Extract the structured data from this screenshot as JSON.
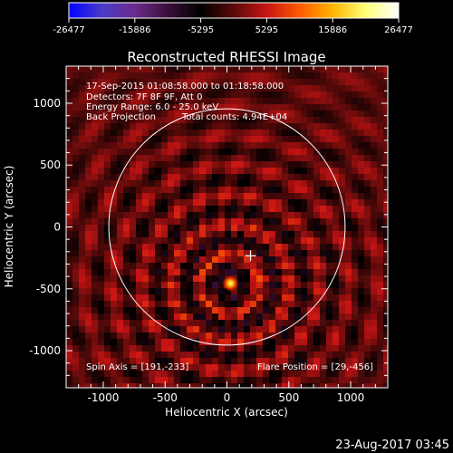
{
  "chart_data": {
    "type": "heatmap",
    "title": "Reconstructed RHESSI Image",
    "xlabel": "Heliocentric X (arcsec)",
    "ylabel": "Heliocentric Y (arcsec)",
    "xlim": [
      -1300,
      1300
    ],
    "ylim": [
      -1300,
      1300
    ],
    "x_ticks": [
      -1000,
      -500,
      0,
      500,
      1000
    ],
    "x_tick_labels": [
      "-1000",
      "-500",
      "0",
      "500",
      "1000"
    ],
    "y_ticks": [
      -1000,
      -500,
      0,
      500,
      1000
    ],
    "y_tick_labels": [
      "-1000",
      "-500",
      "0",
      "500",
      "1000"
    ],
    "colorbar": {
      "min": -26477,
      "max": 26477,
      "tick_values": [
        -26477,
        -15886,
        -5295,
        5295,
        15886,
        26477
      ],
      "tick_labels": [
        "-26477",
        "-15886",
        "-5295",
        "5295",
        "15886",
        "26477"
      ],
      "colors": [
        "#0000ff",
        "#4b3cc8",
        "#6a2c8c",
        "#3a0f3a",
        "#000000",
        "#5a0a0a",
        "#c81414",
        "#ff5a00",
        "#ffb400",
        "#ffff78",
        "#ffffff"
      ]
    },
    "info_lines": [
      "17-Sep-2015 01:08:58.000 to 01:18:58.000",
      "Detectors: 7F 8F 9F, Att 0",
      "Energy Range: 6.0 - 25.0 keV",
      "Back Projection",
      "Total counts: 4.94E+04"
    ],
    "solar_disk_radius_arcsec": 955,
    "spin_axis": [
      191,
      -233
    ],
    "spin_axis_label": "Spin Axis = [191,-233]",
    "flare_position": [
      29,
      -456
    ],
    "flare_position_label": "Flare Position = [29,-456]",
    "grid": false
  },
  "footer": {
    "timestamp": "23-Aug-2017 03:45"
  }
}
